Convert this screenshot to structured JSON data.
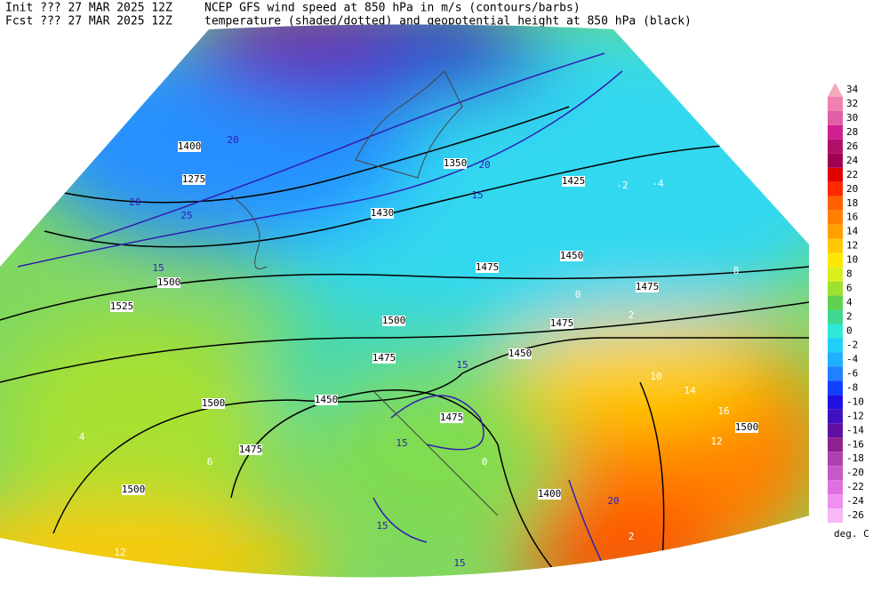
{
  "header": {
    "init": "Init  ??? 27 MAR 2025 12Z",
    "fcst": "Fcst ??? 27 MAR 2025 12Z",
    "title": "NCEP GFS wind speed at 850 hPa in m/s (contours/barbs)",
    "subtitle": "temperature (shaded/dotted) and geopotential height at 850 hPa (black)"
  },
  "map": {
    "height_labels": [
      1500,
      1525,
      1500,
      1475,
      1500,
      1450,
      1475,
      1500,
      1475,
      1450,
      1425,
      1475,
      1475,
      1450,
      1400,
      1500,
      1400,
      1275,
      1430,
      1350,
      1475
    ],
    "wind_labels": [
      15,
      20,
      25,
      15,
      15,
      15,
      20,
      15,
      20,
      15,
      20
    ],
    "temp_labels": [
      -2,
      0,
      2,
      6,
      4,
      8,
      10,
      12,
      16,
      14,
      12,
      -4,
      0,
      2
    ]
  },
  "colorbar": {
    "levels": [
      34,
      32,
      30,
      28,
      26,
      24,
      22,
      20,
      18,
      16,
      14,
      12,
      10,
      8,
      6,
      4,
      2,
      0,
      -2,
      -4,
      -6,
      -8,
      -10,
      -12,
      -14,
      -16,
      -18,
      -20,
      -22,
      -24,
      -26
    ],
    "colors": [
      "#f4a8bc",
      "#f080b0",
      "#e060a8",
      "#d02090",
      "#b0106a",
      "#a00050",
      "#e00000",
      "#ff2800",
      "#ff6000",
      "#ff8000",
      "#ffa000",
      "#ffc800",
      "#ffe800",
      "#d8f020",
      "#a0e030",
      "#60d050",
      "#40d890",
      "#30e8d8",
      "#20d0f8",
      "#20b0ff",
      "#2080ff",
      "#1040ff",
      "#2010e0",
      "#4010c0",
      "#6010a0",
      "#902090",
      "#b040b0",
      "#c858c8",
      "#e070e0",
      "#f090f0",
      "#f8b8f8"
    ],
    "unit": "deg. C"
  }
}
